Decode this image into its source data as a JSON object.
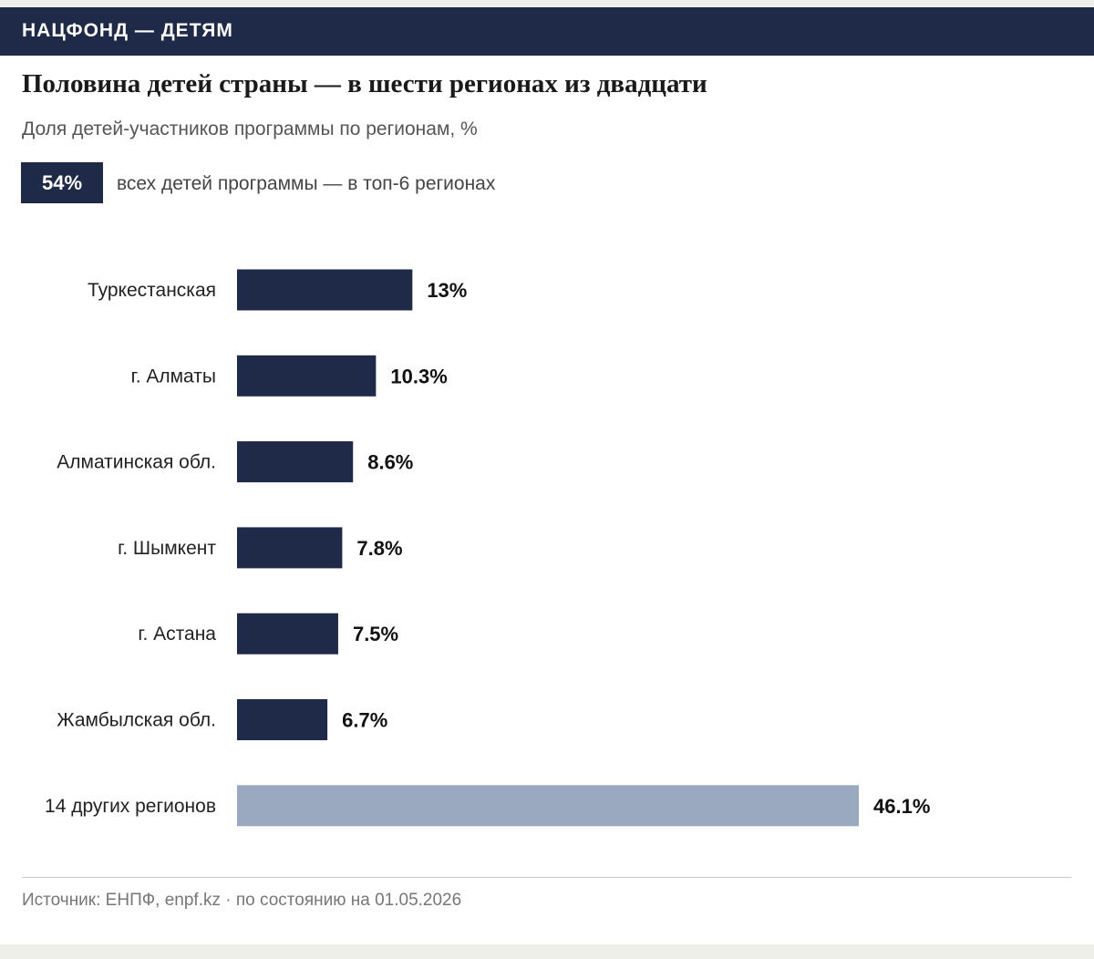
{
  "header": {
    "brand": "НАЦФОНД — ДЕТЯМ"
  },
  "title": "Половина детей страны — в шести регионах из двадцати",
  "subtitle": "Доля детей-участников программы по регионам, %",
  "highlight": {
    "value": "54%",
    "text": "всех детей программы — в топ-6 регионах"
  },
  "colors": {
    "primary": "#1e2a48",
    "secondary": "#9aa8c0"
  },
  "chart_data": {
    "type": "bar",
    "orientation": "horizontal",
    "categories": [
      "Туркестанская",
      "г. Алматы",
      "Алматинская обл.",
      "г. Шымкент",
      "г. Астана",
      "Жамбылская обл.",
      "14 других регионов"
    ],
    "values": [
      13,
      10.3,
      8.6,
      7.8,
      7.5,
      6.7,
      46.1
    ],
    "value_labels": [
      "13%",
      "10.3%",
      "8.6%",
      "7.8%",
      "7.5%",
      "6.7%",
      "46.1%"
    ],
    "highlighted": [
      true,
      true,
      true,
      true,
      true,
      true,
      false
    ],
    "xlim": [
      0,
      46.1
    ],
    "grid": false,
    "title": "Половина детей страны — в шести регионах из двадцати",
    "xlabel": "",
    "ylabel": ""
  },
  "footer": {
    "source": "Источник: ЕНПФ, enpf.kz · по состоянию на 01.05.2026"
  }
}
